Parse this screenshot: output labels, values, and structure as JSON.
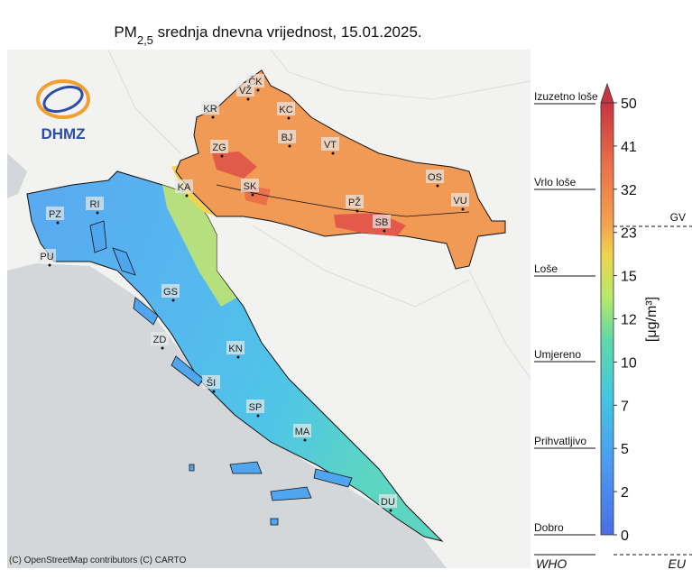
{
  "title": {
    "main": "PM",
    "sub": "2,5",
    "rest": " srednja dnevna vrijednost, 15.01.2025."
  },
  "logo": "DHMZ",
  "cities": [
    "ČK",
    "VŽ",
    "KR",
    "KC",
    "BJ",
    "ZG",
    "VT",
    "KA",
    "SK",
    "OS",
    "PŽ",
    "VU",
    "SB",
    "PZ",
    "RI",
    "PU",
    "GS",
    "ZD",
    "KN",
    "ŠI",
    "SP",
    "MA",
    "DU"
  ],
  "colorbar": {
    "ticks": [
      "50",
      "41",
      "32",
      "23",
      "15",
      "12",
      "10",
      "7",
      "5",
      "2",
      "0"
    ],
    "unit": "[μg/m³]"
  },
  "categories": [
    "Izuzetno loše",
    "Vrlo loše",
    "Loše",
    "Umjereno",
    "Prihvatljivo",
    "Dobro"
  ],
  "references": {
    "gv": "GV",
    "who": "WHO",
    "eu": "EU"
  },
  "attribution": "(C) OpenStreetMap contributors (C) CARTO"
}
